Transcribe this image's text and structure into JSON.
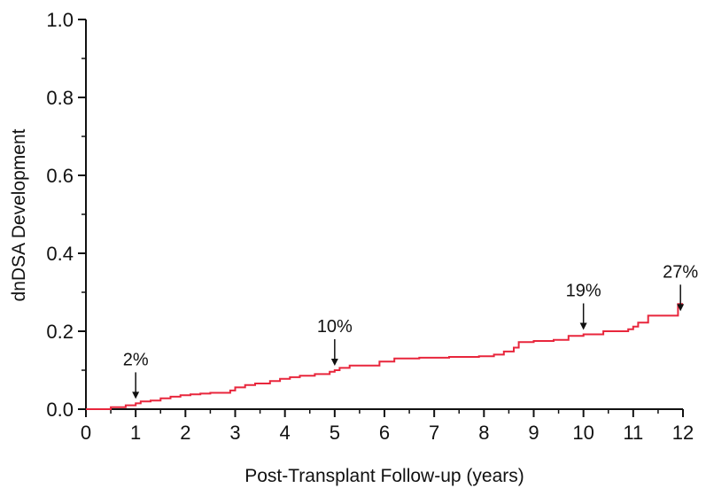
{
  "chart_data": {
    "type": "line",
    "step": true,
    "xlabel": "Post-Transplant Follow-up (years)",
    "ylabel": "dnDSA Development",
    "xlim": [
      0,
      12
    ],
    "ylim": [
      0,
      1.0
    ],
    "x_ticks": [
      0,
      1,
      2,
      3,
      4,
      5,
      6,
      7,
      8,
      9,
      10,
      11,
      12
    ],
    "x_tick_labels": [
      "0",
      "1",
      "2",
      "3",
      "4",
      "5",
      "6",
      "7",
      "8",
      "9",
      "10",
      "11",
      "12"
    ],
    "y_ticks": [
      0,
      0.2,
      0.4,
      0.6,
      0.8,
      1.0
    ],
    "y_tick_labels": [
      "0.0",
      "0.2",
      "0.4",
      "0.6",
      "0.8",
      "1.0"
    ],
    "grid": false,
    "series": [
      {
        "color": "#e8263c",
        "x": [
          0,
          0.5,
          0.8,
          1.0,
          1.1,
          1.3,
          1.5,
          1.7,
          1.9,
          2.1,
          2.3,
          2.5,
          2.9,
          3.0,
          3.2,
          3.4,
          3.7,
          3.9,
          4.1,
          4.3,
          4.6,
          4.9,
          5.0,
          5.1,
          5.3,
          5.9,
          6.2,
          6.7,
          7.3,
          7.9,
          8.2,
          8.4,
          8.6,
          8.7,
          9.0,
          9.4,
          9.7,
          10.0,
          10.4,
          10.9,
          11.0,
          11.1,
          11.3,
          11.9
        ],
        "y": [
          0,
          0.005,
          0.01,
          0.015,
          0.02,
          0.022,
          0.028,
          0.032,
          0.036,
          0.038,
          0.04,
          0.042,
          0.048,
          0.056,
          0.062,
          0.066,
          0.072,
          0.078,
          0.082,
          0.086,
          0.09,
          0.096,
          0.1,
          0.106,
          0.112,
          0.122,
          0.13,
          0.132,
          0.134,
          0.136,
          0.14,
          0.148,
          0.158,
          0.172,
          0.175,
          0.178,
          0.188,
          0.192,
          0.2,
          0.205,
          0.212,
          0.222,
          0.24,
          0.27
        ]
      }
    ],
    "annotations": [
      {
        "text": "2%",
        "x": 1,
        "y": 0.015
      },
      {
        "text": "10%",
        "x": 5,
        "y": 0.1
      },
      {
        "text": "19%",
        "x": 10,
        "y": 0.192
      },
      {
        "text": "27%",
        "x": 11.95,
        "y": 0.24
      }
    ]
  }
}
